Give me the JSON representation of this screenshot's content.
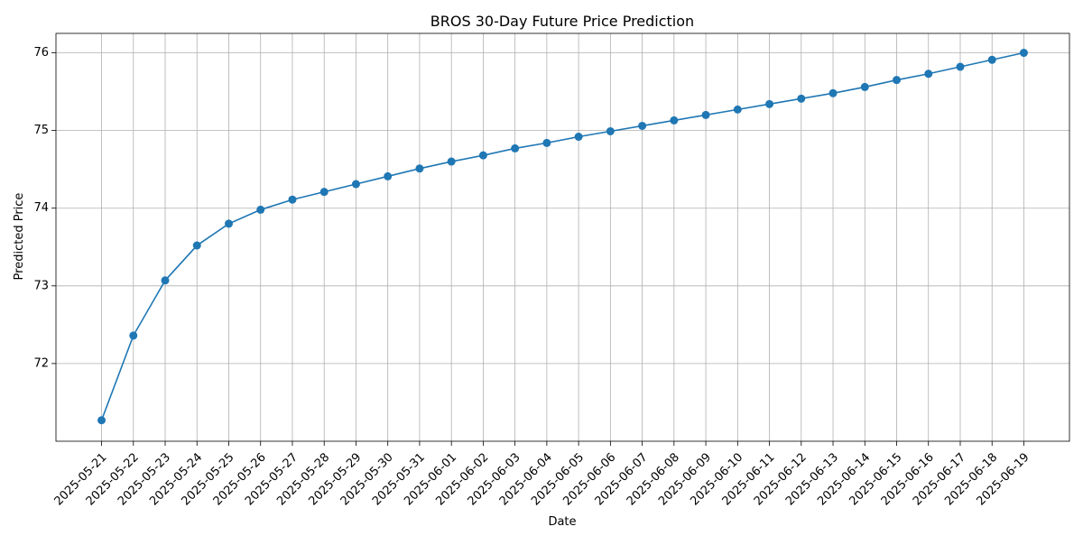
{
  "chart_data": {
    "type": "line",
    "title": "BROS 30-Day Future Price Prediction",
    "xlabel": "Date",
    "ylabel": "Predicted Price",
    "grid": true,
    "marker": "circle",
    "line_color": "#1f77b4",
    "ylim": [
      71.0,
      76.25
    ],
    "yticks": [
      72,
      73,
      74,
      75,
      76
    ],
    "x": [
      "2025-05-21",
      "2025-05-22",
      "2025-05-23",
      "2025-05-24",
      "2025-05-25",
      "2025-05-26",
      "2025-05-27",
      "2025-05-28",
      "2025-05-29",
      "2025-05-30",
      "2025-05-31",
      "2025-06-01",
      "2025-06-02",
      "2025-06-03",
      "2025-06-04",
      "2025-06-05",
      "2025-06-06",
      "2025-06-07",
      "2025-06-08",
      "2025-06-09",
      "2025-06-10",
      "2025-06-11",
      "2025-06-12",
      "2025-06-13",
      "2025-06-14",
      "2025-06-15",
      "2025-06-16",
      "2025-06-17",
      "2025-06-18",
      "2025-06-19"
    ],
    "series": [
      {
        "values": [
          71.27,
          72.36,
          73.07,
          73.52,
          73.8,
          73.98,
          74.11,
          74.21,
          74.31,
          74.41,
          74.51,
          74.6,
          74.68,
          74.77,
          74.84,
          74.92,
          74.99,
          75.06,
          75.13,
          75.2,
          75.27,
          75.34,
          75.41,
          75.48,
          75.56,
          75.65,
          75.73,
          75.82,
          75.91,
          76.0
        ]
      }
    ]
  }
}
